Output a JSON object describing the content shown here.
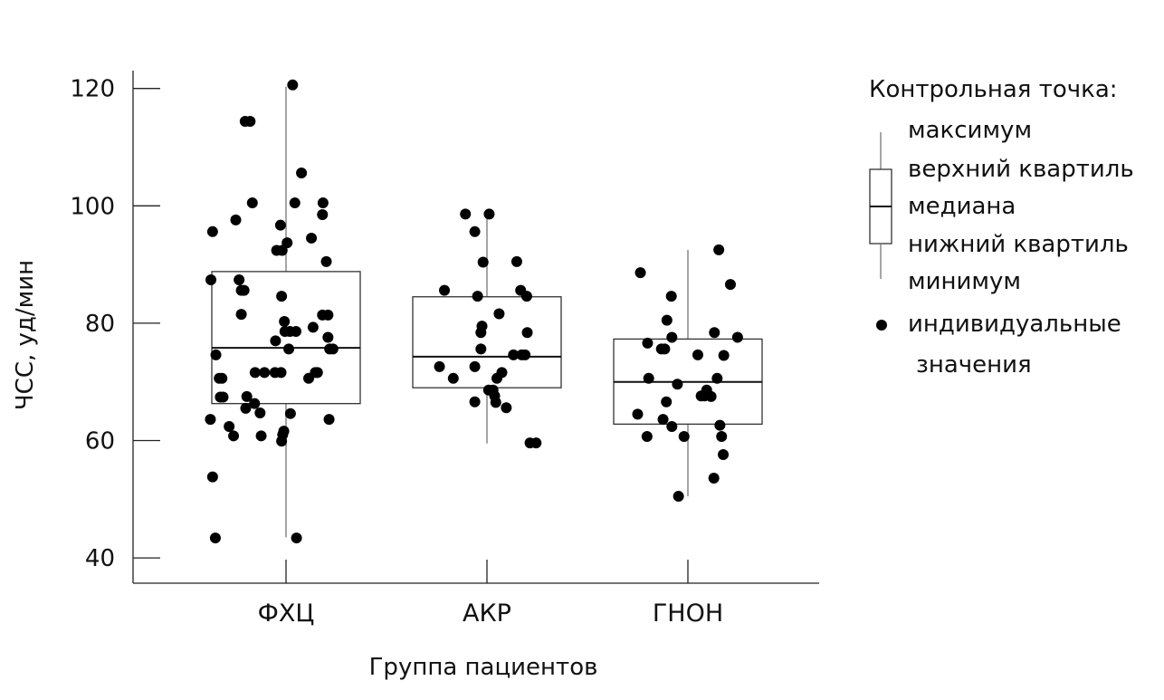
{
  "chart_data": {
    "type": "box",
    "xlabel": "Группа пациентов",
    "ylabel": "ЧСС, уд/мин",
    "ylim": [
      36,
      124
    ],
    "yticks": [
      40,
      60,
      80,
      100,
      120
    ],
    "categories": [
      "ФХЦ",
      "АКР",
      "ГНОН"
    ],
    "boxes": [
      {
        "category": "ФХЦ",
        "min": 43.5,
        "q1": 66.3,
        "median": 75.8,
        "q3": 88.8,
        "max": 120.3
      },
      {
        "category": "АКР",
        "min": 59.5,
        "q1": 69.0,
        "median": 74.3,
        "q3": 84.5,
        "max": 98.3
      },
      {
        "category": "ГНОН",
        "min": 50.5,
        "q1": 62.8,
        "median": 70.0,
        "q3": 77.3,
        "max": 92.5
      }
    ],
    "points": [
      [
        [
          -1.33,
          95.6
        ],
        [
          -1.36,
          87.4
        ],
        [
          -0.91,
          97.6
        ],
        [
          -0.74,
          114.4
        ],
        [
          -0.65,
          114.4
        ],
        [
          -0.61,
          100.5
        ],
        [
          -0.85,
          87.4
        ],
        [
          -0.81,
          85.6
        ],
        [
          -0.76,
          85.6
        ],
        [
          -0.81,
          81.5
        ],
        [
          -1.27,
          74.6
        ],
        [
          -1.16,
          70.6
        ],
        [
          -1.21,
          70.6
        ],
        [
          -1.19,
          67.4
        ],
        [
          -1.14,
          67.4
        ],
        [
          -1.37,
          63.6
        ],
        [
          -1.03,
          62.4
        ],
        [
          -0.95,
          60.8
        ],
        [
          -0.73,
          65.5
        ],
        [
          -0.57,
          66.3
        ],
        [
          -0.56,
          71.6
        ],
        [
          -0.47,
          64.7
        ],
        [
          -0.45,
          60.8
        ],
        [
          -0.71,
          67.5
        ],
        [
          -1.33,
          53.8
        ],
        [
          -1.28,
          43.4
        ],
        [
          -0.1,
          96.7
        ],
        [
          -0.17,
          92.4
        ],
        [
          -0.07,
          92.4
        ],
        [
          0.02,
          93.7
        ],
        [
          -0.08,
          84.6
        ],
        [
          0.16,
          100.5
        ],
        [
          0.28,
          105.6
        ],
        [
          -0.19,
          77.0
        ],
        [
          -0.03,
          80.3
        ],
        [
          -0.02,
          78.6
        ],
        [
          0.07,
          78.6
        ],
        [
          0.05,
          75.6
        ],
        [
          0.18,
          78.6
        ],
        [
          -0.2,
          71.6
        ],
        [
          -0.09,
          71.6
        ],
        [
          -0.39,
          71.6
        ],
        [
          0.08,
          64.6
        ],
        [
          -0.08,
          59.9
        ],
        [
          -0.06,
          61.0
        ],
        [
          -0.04,
          61.6
        ],
        [
          0.19,
          43.4
        ],
        [
          0.67,
          100.5
        ],
        [
          0.66,
          98.5
        ],
        [
          0.46,
          94.5
        ],
        [
          0.49,
          79.3
        ],
        [
          0.73,
          90.5
        ],
        [
          0.76,
          81.4
        ],
        [
          0.66,
          81.4
        ],
        [
          0.76,
          77.6
        ],
        [
          0.79,
          75.6
        ],
        [
          0.85,
          75.6
        ],
        [
          0.41,
          70.6
        ],
        [
          0.53,
          71.6
        ],
        [
          0.57,
          71.6
        ],
        [
          0.78,
          63.6
        ],
        [
          0.12,
          120.6
        ]
      ],
      [
        [
          -0.77,
          85.6
        ],
        [
          -0.86,
          72.6
        ],
        [
          -0.61,
          70.6
        ],
        [
          -0.39,
          98.6
        ],
        [
          -0.22,
          95.6
        ],
        [
          -0.07,
          90.4
        ],
        [
          -0.17,
          84.6
        ],
        [
          -0.09,
          79.5
        ],
        [
          -0.11,
          78.4
        ],
        [
          -0.11,
          75.6
        ],
        [
          -0.22,
          72.6
        ],
        [
          -0.22,
          66.6
        ],
        [
          0.04,
          98.6
        ],
        [
          0.22,
          81.6
        ],
        [
          0.11,
          68.6
        ],
        [
          0.03,
          68.6
        ],
        [
          0.18,
          70.6
        ],
        [
          0.14,
          67.6
        ],
        [
          0.27,
          71.6
        ],
        [
          0.16,
          66.5
        ],
        [
          0.35,
          65.6
        ],
        [
          0.54,
          90.5
        ],
        [
          0.48,
          74.6
        ],
        [
          0.61,
          85.6
        ],
        [
          0.72,
          84.6
        ],
        [
          0.63,
          74.6
        ],
        [
          0.69,
          74.6
        ],
        [
          0.73,
          78.4
        ],
        [
          0.78,
          59.6
        ],
        [
          0.89,
          59.6
        ]
      ],
      [
        [
          -0.86,
          88.6
        ],
        [
          -0.73,
          76.6
        ],
        [
          -0.71,
          70.6
        ],
        [
          -0.48,
          75.6
        ],
        [
          -0.42,
          75.6
        ],
        [
          -0.38,
          80.5
        ],
        [
          -0.39,
          66.6
        ],
        [
          -0.45,
          63.6
        ],
        [
          -0.29,
          77.6
        ],
        [
          -0.29,
          62.4
        ],
        [
          -0.3,
          84.6
        ],
        [
          -0.19,
          69.6
        ],
        [
          -0.91,
          64.5
        ],
        [
          -0.74,
          60.7
        ],
        [
          -0.07,
          60.7
        ],
        [
          -0.17,
          50.5
        ],
        [
          0.18,
          74.6
        ],
        [
          0.24,
          67.6
        ],
        [
          0.3,
          67.6
        ],
        [
          0.34,
          68.6
        ],
        [
          0.42,
          67.5
        ],
        [
          0.48,
          78.4
        ],
        [
          0.53,
          70.6
        ],
        [
          0.56,
          92.5
        ],
        [
          0.65,
          74.5
        ],
        [
          0.58,
          62.6
        ],
        [
          0.61,
          60.7
        ],
        [
          0.64,
          57.6
        ],
        [
          0.47,
          53.6
        ],
        [
          0.77,
          86.6
        ],
        [
          0.9,
          77.6
        ]
      ]
    ],
    "legend": {
      "title": "Контрольная точка:",
      "items": [
        "максимум",
        "верхний квартиль",
        "медиана",
        "нижний квартиль",
        "минимум",
        "индивидуальные значения"
      ]
    }
  }
}
